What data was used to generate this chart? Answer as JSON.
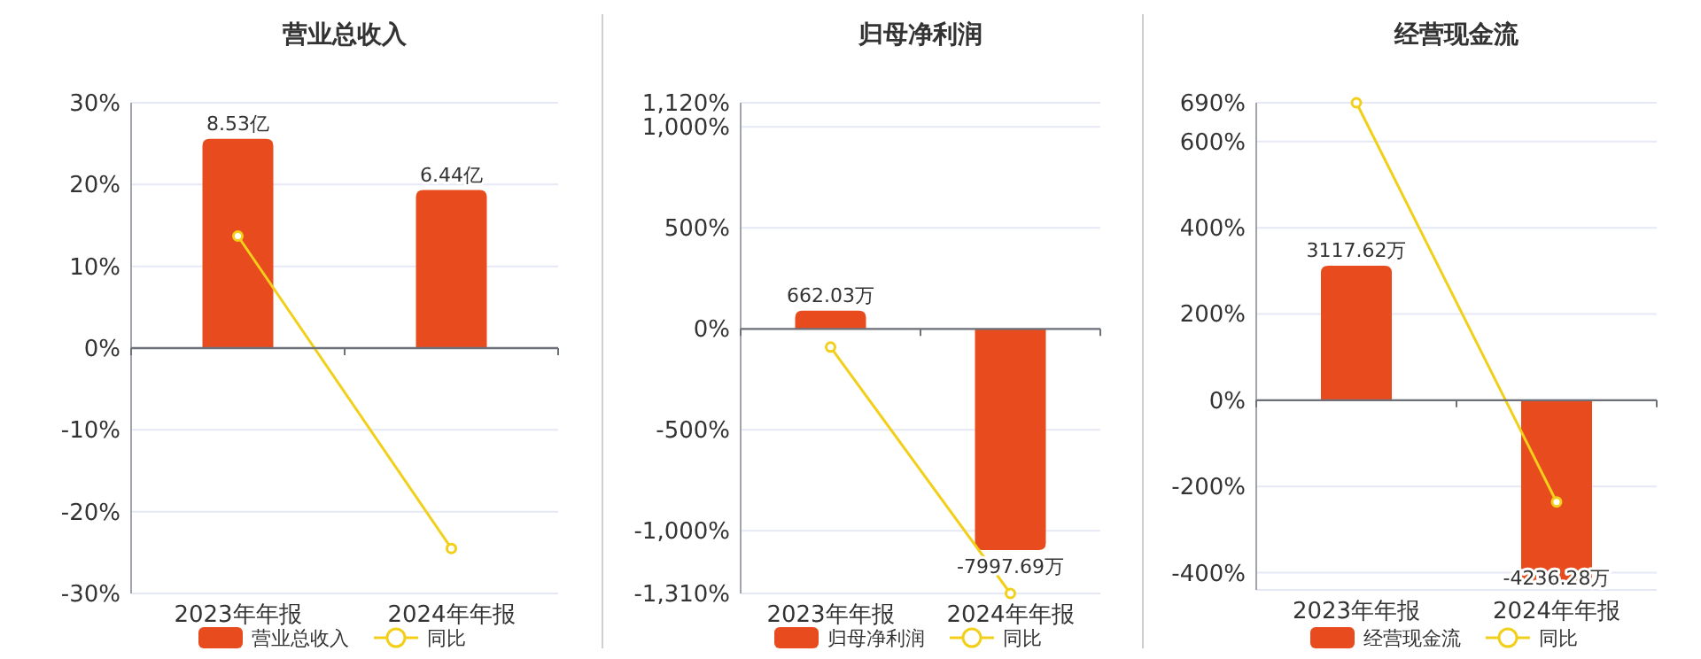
{
  "chart_data": [
    {
      "type": "bar",
      "title": "营业总收入",
      "categories": [
        "2023年年报",
        "2024年年报"
      ],
      "ylim": [
        -30,
        30
      ],
      "yticks": [
        {
          "value": -30,
          "label": "-30%"
        },
        {
          "value": -20,
          "label": "-20%"
        },
        {
          "value": -10,
          "label": "-10%"
        },
        {
          "value": 0,
          "label": "0%"
        },
        {
          "value": 10,
          "label": "10%"
        },
        {
          "value": 20,
          "label": "20%"
        },
        {
          "value": 30,
          "label": "30%"
        }
      ],
      "y2lim": [
        -10,
        10
      ],
      "grid": "y",
      "legend": "bottom",
      "series": [
        {
          "name": "营业总收入",
          "color": "#e84c1e",
          "axis": "y2",
          "values": [
            8.53,
            6.44
          ],
          "value_labels": [
            "8.53亿",
            "6.44亿"
          ]
        },
        {
          "name": "同比",
          "type": "line",
          "color": "#f2cf1a",
          "marker": "circle",
          "values": [
            13.7,
            -24.5
          ]
        }
      ]
    },
    {
      "type": "bar",
      "title": "归母净利润",
      "categories": [
        "2023年年报",
        "2024年年报"
      ],
      "ylim": [
        -1310,
        1120
      ],
      "yticks": [
        {
          "value": -1310,
          "label": "-1,310%"
        },
        {
          "value": -1000,
          "label": "-1,000%"
        },
        {
          "value": -500,
          "label": "-500%"
        },
        {
          "value": 0,
          "label": "0%"
        },
        {
          "value": 500,
          "label": "500%"
        },
        {
          "value": 1000,
          "label": "1,000%"
        },
        {
          "value": 1120,
          "label": "1,120%"
        }
      ],
      "y2lim": [
        -9563,
        8176
      ],
      "grid": "y",
      "legend": "bottom",
      "series": [
        {
          "name": "归母净利润",
          "color": "#e84c1e",
          "axis": "y2",
          "values": [
            662.03,
            -7997.69
          ],
          "value_labels": [
            "662.03万",
            "-7997.69万"
          ]
        },
        {
          "name": "同比",
          "type": "line",
          "color": "#f2cf1a",
          "marker": "circle",
          "values": [
            -90,
            -1310
          ]
        }
      ]
    },
    {
      "type": "bar",
      "title": "经营现金流",
      "categories": [
        "2023年年报",
        "2024年年报"
      ],
      "ylim": [
        -440,
        690
      ],
      "yticks": [
        {
          "value": -440,
          "label": null
        },
        {
          "value": -400,
          "label": "-400%"
        },
        {
          "value": -200,
          "label": "-200%"
        },
        {
          "value": 0,
          "label": "0%"
        },
        {
          "value": 200,
          "label": "200%"
        },
        {
          "value": 400,
          "label": "400%"
        },
        {
          "value": 600,
          "label": "600%"
        },
        {
          "value": 690,
          "label": "690%"
        }
      ],
      "y2lim": [
        -4400,
        6900
      ],
      "grid": "y",
      "legend": "bottom",
      "series": [
        {
          "name": "经营现金流",
          "color": "#e84c1e",
          "axis": "y2",
          "values": [
            3117.62,
            -4236.28
          ],
          "value_labels": [
            "3117.62万",
            "-4236.28万"
          ]
        },
        {
          "name": "同比",
          "type": "line",
          "color": "#f2cf1a",
          "marker": "circle",
          "values": [
            690,
            -236
          ]
        }
      ]
    }
  ]
}
